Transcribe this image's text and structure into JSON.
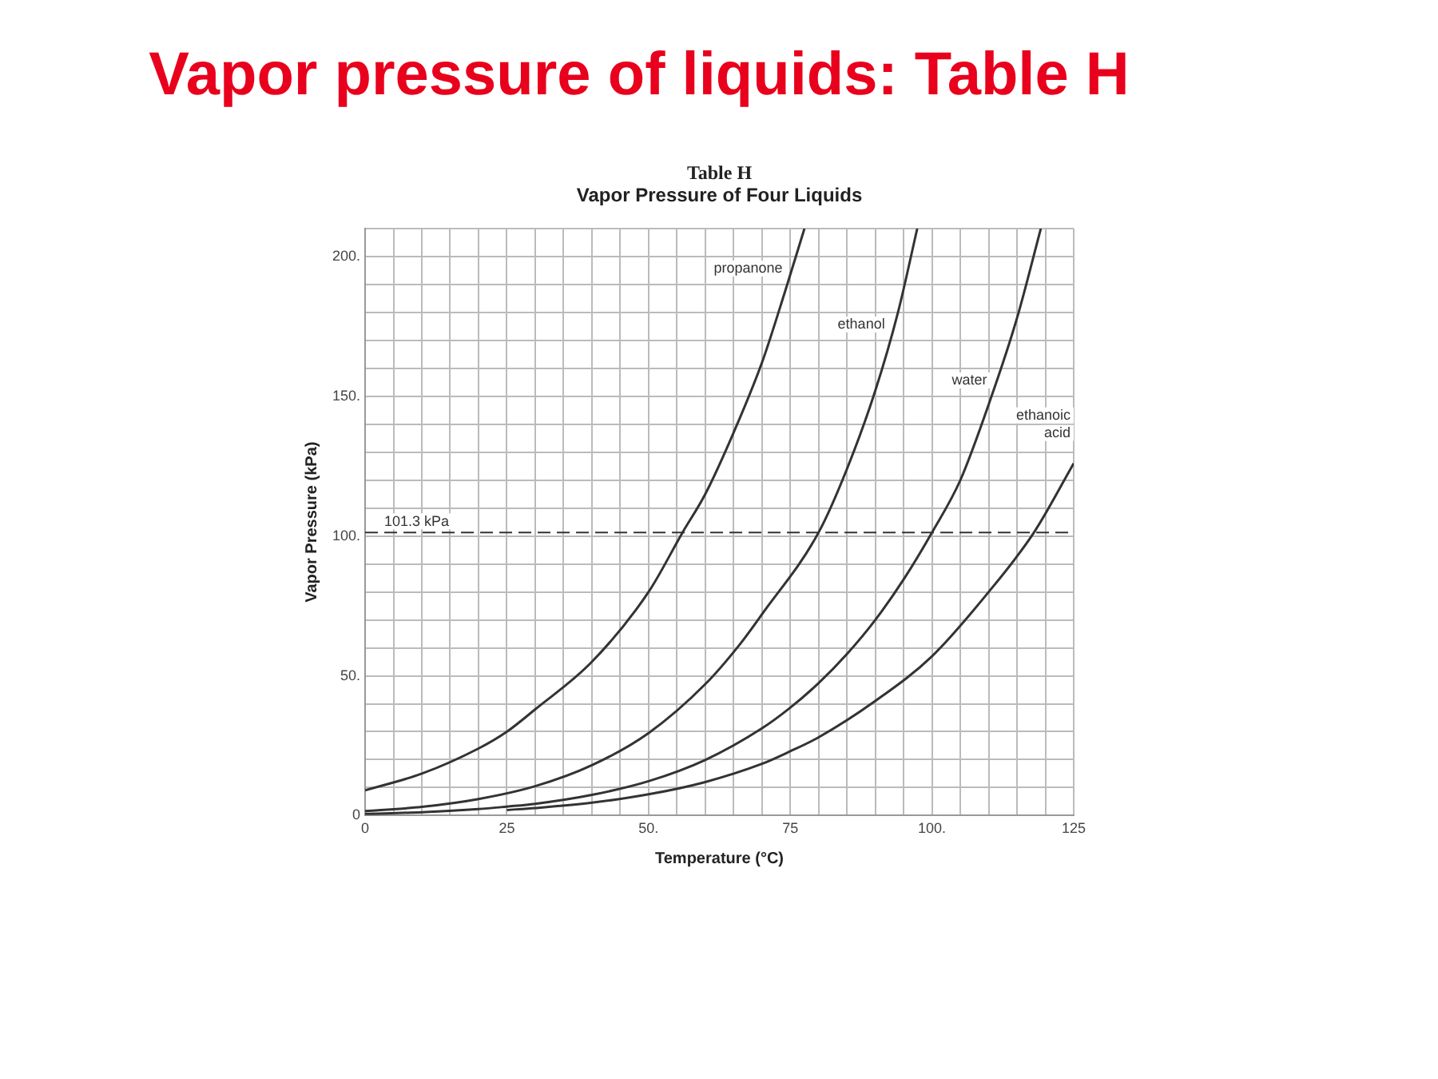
{
  "chart_data": {
    "type": "line",
    "title": "Vapor pressure of liquids: Table H",
    "subtitle": "Vapor Pressure of Four Liquids",
    "annotations": [
      "Table H"
    ],
    "xlabel": "Temperature (°C)",
    "ylabel": "Vapor Pressure (kPa)",
    "xlim": [
      0,
      125
    ],
    "ylim": [
      0,
      210
    ],
    "xticks": [
      0,
      {
        "value": 5,
        "label": null
      },
      {
        "value": 10,
        "label": null
      },
      {
        "value": 15,
        "label": null
      },
      {
        "value": 20,
        "label": null
      },
      25,
      {
        "value": 30,
        "label": null
      },
      {
        "value": 35,
        "label": null
      },
      {
        "value": 40,
        "label": null
      },
      {
        "value": 45,
        "label": null
      },
      {
        "value": 50,
        "label": "50."
      },
      {
        "value": 55,
        "label": null
      },
      {
        "value": 60,
        "label": null
      },
      {
        "value": 65,
        "label": null
      },
      {
        "value": 70,
        "label": null
      },
      75,
      {
        "value": 80,
        "label": null
      },
      {
        "value": 85,
        "label": null
      },
      {
        "value": 90,
        "label": null
      },
      {
        "value": 95,
        "label": null
      },
      {
        "value": 100,
        "label": "100."
      },
      {
        "value": 105,
        "label": null
      },
      {
        "value": 110,
        "label": null
      },
      {
        "value": 115,
        "label": null
      },
      {
        "value": 120,
        "label": null
      },
      125
    ],
    "yticks": [
      0,
      {
        "value": 10,
        "label": null
      },
      {
        "value": 20,
        "label": null
      },
      {
        "value": 30,
        "label": null
      },
      {
        "value": 40,
        "label": null
      },
      {
        "value": 50,
        "label": "50."
      },
      {
        "value": 60,
        "label": null
      },
      {
        "value": 70,
        "label": null
      },
      {
        "value": 80,
        "label": null
      },
      {
        "value": 90,
        "label": null
      },
      {
        "value": 100,
        "label": "100."
      },
      {
        "value": 110,
        "label": null
      },
      {
        "value": 120,
        "label": null
      },
      {
        "value": 130,
        "label": null
      },
      {
        "value": 140,
        "label": null
      },
      {
        "value": 150,
        "label": "150."
      },
      {
        "value": 160,
        "label": null
      },
      {
        "value": 170,
        "label": null
      },
      {
        "value": 180,
        "label": null
      },
      {
        "value": 190,
        "label": null
      },
      {
        "value": 200,
        "label": "200."
      },
      {
        "value": 210,
        "label": null
      }
    ],
    "grid": true,
    "legend": false,
    "marker": "none",
    "line_style": "solid",
    "ref_lines": [
      {
        "axis": "y",
        "value": 101.3,
        "label": "101.3 kPa",
        "line_style": "dashed",
        "color": "#333333"
      }
    ],
    "series": [
      {
        "name": "propanone",
        "color": "#333333",
        "x": [
          0,
          10,
          20,
          25,
          30,
          40,
          50,
          56,
          60,
          65,
          70,
          74,
          77.5
        ],
        "values": [
          9,
          15,
          24,
          30,
          38,
          55,
          80,
          101.3,
          115,
          137,
          162,
          187,
          210
        ]
      },
      {
        "name": "ethanol",
        "color": "#333333",
        "x": [
          0,
          10,
          20,
          30,
          40,
          50,
          60,
          66,
          70,
          80,
          85,
          90,
          94,
          97.4
        ],
        "values": [
          1.6,
          3.1,
          5.9,
          10.5,
          18,
          29.5,
          47,
          61,
          72,
          101.3,
          124,
          152,
          180,
          210
        ]
      },
      {
        "name": "water",
        "color": "#333333",
        "x": [
          0,
          10,
          20,
          25,
          30,
          40,
          50,
          60,
          70,
          75,
          80,
          85,
          90,
          95,
          100,
          105,
          110.5,
          115,
          119.2
        ],
        "values": [
          0.6,
          1.2,
          2.3,
          3.2,
          4.2,
          7.4,
          12.3,
          19.9,
          31.2,
          38.6,
          47.4,
          57.8,
          70,
          84.5,
          101.3,
          120,
          150,
          178,
          210
        ]
      },
      {
        "name": "ethanoic acid",
        "color": "#333333",
        "x": [
          25,
          30,
          40,
          50,
          60,
          70,
          75,
          80,
          90,
          100,
          110,
          118,
          125
        ],
        "values": [
          2,
          2.7,
          4.6,
          7.6,
          12,
          18.5,
          23,
          28,
          41,
          57,
          80,
          101.3,
          126
        ]
      }
    ]
  }
}
